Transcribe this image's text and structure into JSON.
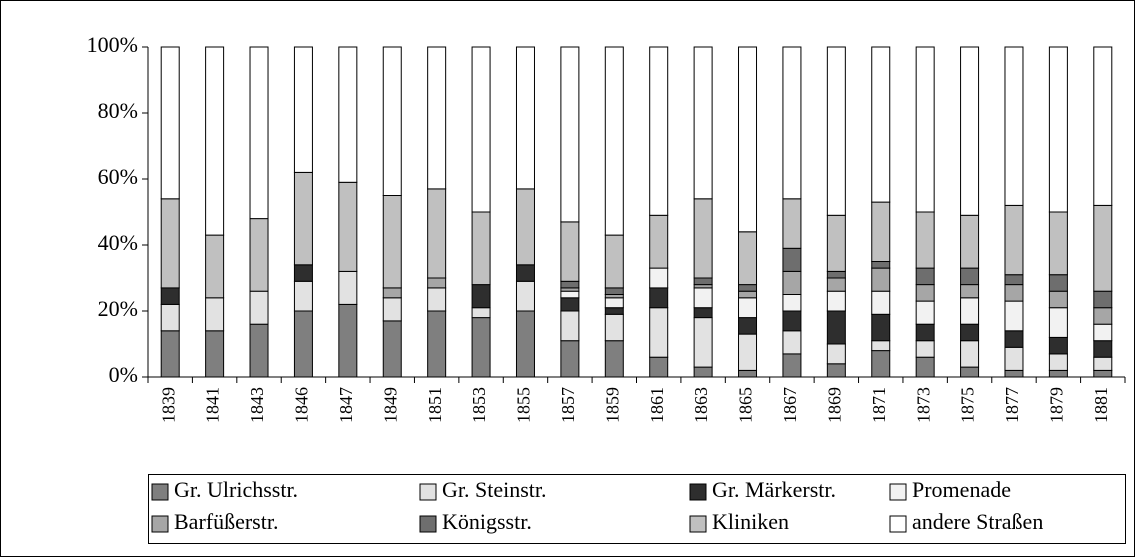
{
  "chart_data": {
    "type": "stacked_bar",
    "categories": [
      "1839",
      "1841",
      "1843",
      "1846",
      "1847",
      "1849",
      "1851",
      "1853",
      "1855",
      "1857",
      "1859",
      "1861",
      "1863",
      "1865",
      "1867",
      "1869",
      "1871",
      "1873",
      "1875",
      "1877",
      "1879",
      "1881"
    ],
    "ylim": [
      0,
      100
    ],
    "yticks": [
      {
        "value": 0,
        "label": "0%"
      },
      {
        "value": 20,
        "label": "20%"
      },
      {
        "value": 40,
        "label": "40%"
      },
      {
        "value": 60,
        "label": "60%"
      },
      {
        "value": 80,
        "label": "80%"
      },
      {
        "value": 100,
        "label": "100%"
      }
    ],
    "series": [
      {
        "name": "Gr. Ulrichsstr.",
        "color": "#7f7f7f",
        "values": [
          14,
          14,
          16,
          20,
          22,
          17,
          20,
          18,
          20,
          11,
          11,
          6,
          3,
          2,
          7,
          4,
          8,
          6,
          3,
          2,
          2,
          2
        ]
      },
      {
        "name": "Gr. Steinstr.",
        "color": "#e2e2e2",
        "values": [
          8,
          10,
          10,
          9,
          10,
          7,
          7,
          3,
          9,
          9,
          8,
          15,
          15,
          11,
          7,
          6,
          3,
          5,
          8,
          7,
          5,
          4
        ]
      },
      {
        "name": "Gr. Märkerstr.",
        "color": "#2e2e2e",
        "values": [
          5,
          0,
          0,
          5,
          0,
          0,
          0,
          7,
          5,
          4,
          2,
          6,
          3,
          5,
          6,
          10,
          8,
          5,
          5,
          5,
          5,
          5
        ]
      },
      {
        "name": "Promenade",
        "color": "#f2f2f2",
        "values": [
          0,
          0,
          0,
          0,
          0,
          0,
          0,
          0,
          0,
          2,
          3,
          6,
          6,
          6,
          5,
          6,
          7,
          7,
          8,
          9,
          9,
          5
        ]
      },
      {
        "name": "Barfüßerstr.",
        "color": "#a6a6a6",
        "values": [
          0,
          0,
          0,
          0,
          0,
          3,
          3,
          0,
          0,
          1,
          1,
          0,
          1,
          2,
          7,
          4,
          7,
          5,
          4,
          5,
          5,
          5
        ]
      },
      {
        "name": "Königsstr.",
        "color": "#6e6e6e",
        "values": [
          0,
          0,
          0,
          0,
          0,
          0,
          0,
          0,
          0,
          2,
          2,
          0,
          2,
          2,
          7,
          2,
          2,
          5,
          5,
          3,
          5,
          5
        ]
      },
      {
        "name": "Kliniken",
        "color": "#c0c0c0",
        "values": [
          27,
          19,
          22,
          28,
          27,
          28,
          27,
          22,
          23,
          18,
          16,
          16,
          24,
          16,
          15,
          17,
          18,
          17,
          16,
          21,
          19,
          26
        ]
      },
      {
        "name": "andere Straßen",
        "color": "#ffffff",
        "values": [
          46,
          57,
          52,
          38,
          41,
          45,
          43,
          50,
          43,
          53,
          57,
          51,
          46,
          56,
          46,
          51,
          47,
          50,
          51,
          48,
          50,
          48
        ]
      }
    ]
  }
}
